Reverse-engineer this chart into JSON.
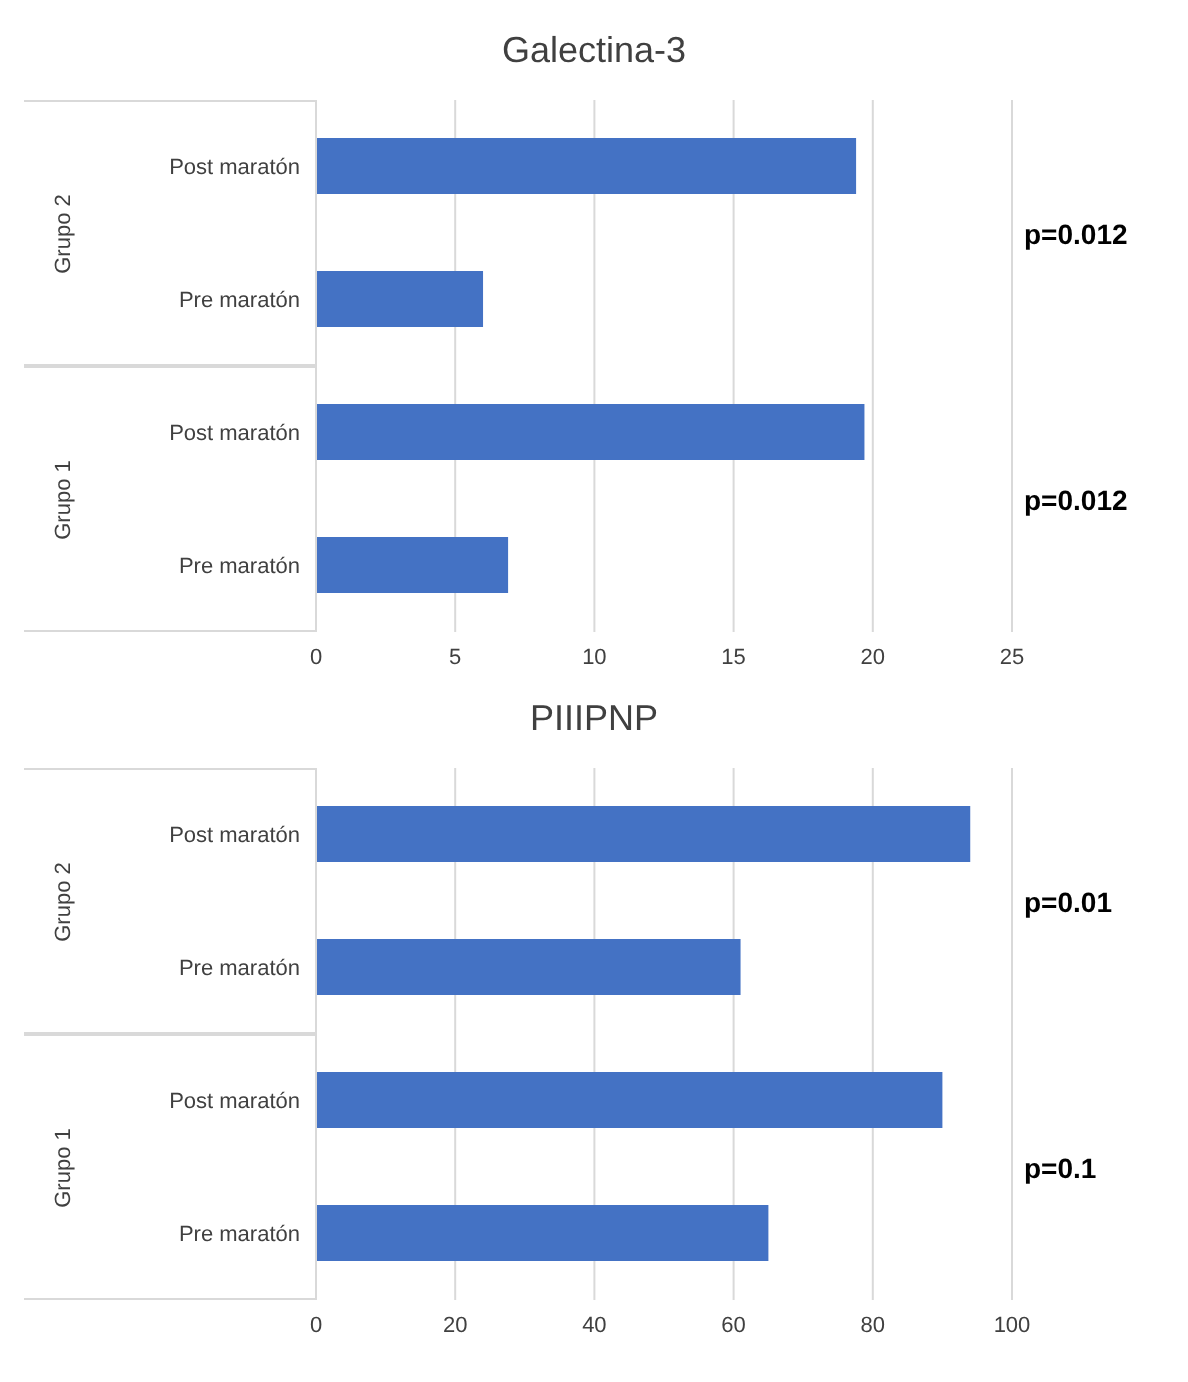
{
  "chart_data": [
    {
      "type": "bar",
      "orientation": "horizontal",
      "title": "Galectina-3",
      "categories": [
        "Post maratón",
        "Pre maratón",
        "Post maratón",
        "Pre maratón"
      ],
      "values": [
        19.4,
        6.0,
        19.7,
        6.9
      ],
      "color": "#4472c4",
      "xlim": [
        0,
        25
      ],
      "xticks": [
        0,
        5,
        10,
        15,
        20,
        25
      ],
      "grid": "x",
      "annotations": [
        "Grupo 2",
        "Grupo 1",
        "p=0.012",
        "p=0.012"
      ]
    },
    {
      "type": "bar",
      "orientation": "horizontal",
      "title": "PIIIPNP",
      "categories": [
        "Post maratón",
        "Pre maratón",
        "Post maratón",
        "Pre maratón"
      ],
      "values": [
        94,
        61,
        90,
        65
      ],
      "color": "#4472c4",
      "xlim": [
        0,
        100
      ],
      "xticks": [
        0,
        20,
        40,
        60,
        80,
        100
      ],
      "grid": "x",
      "annotations": [
        "Grupo 2",
        "Grupo 1",
        "p=0.01",
        "p=0.1"
      ]
    }
  ]
}
